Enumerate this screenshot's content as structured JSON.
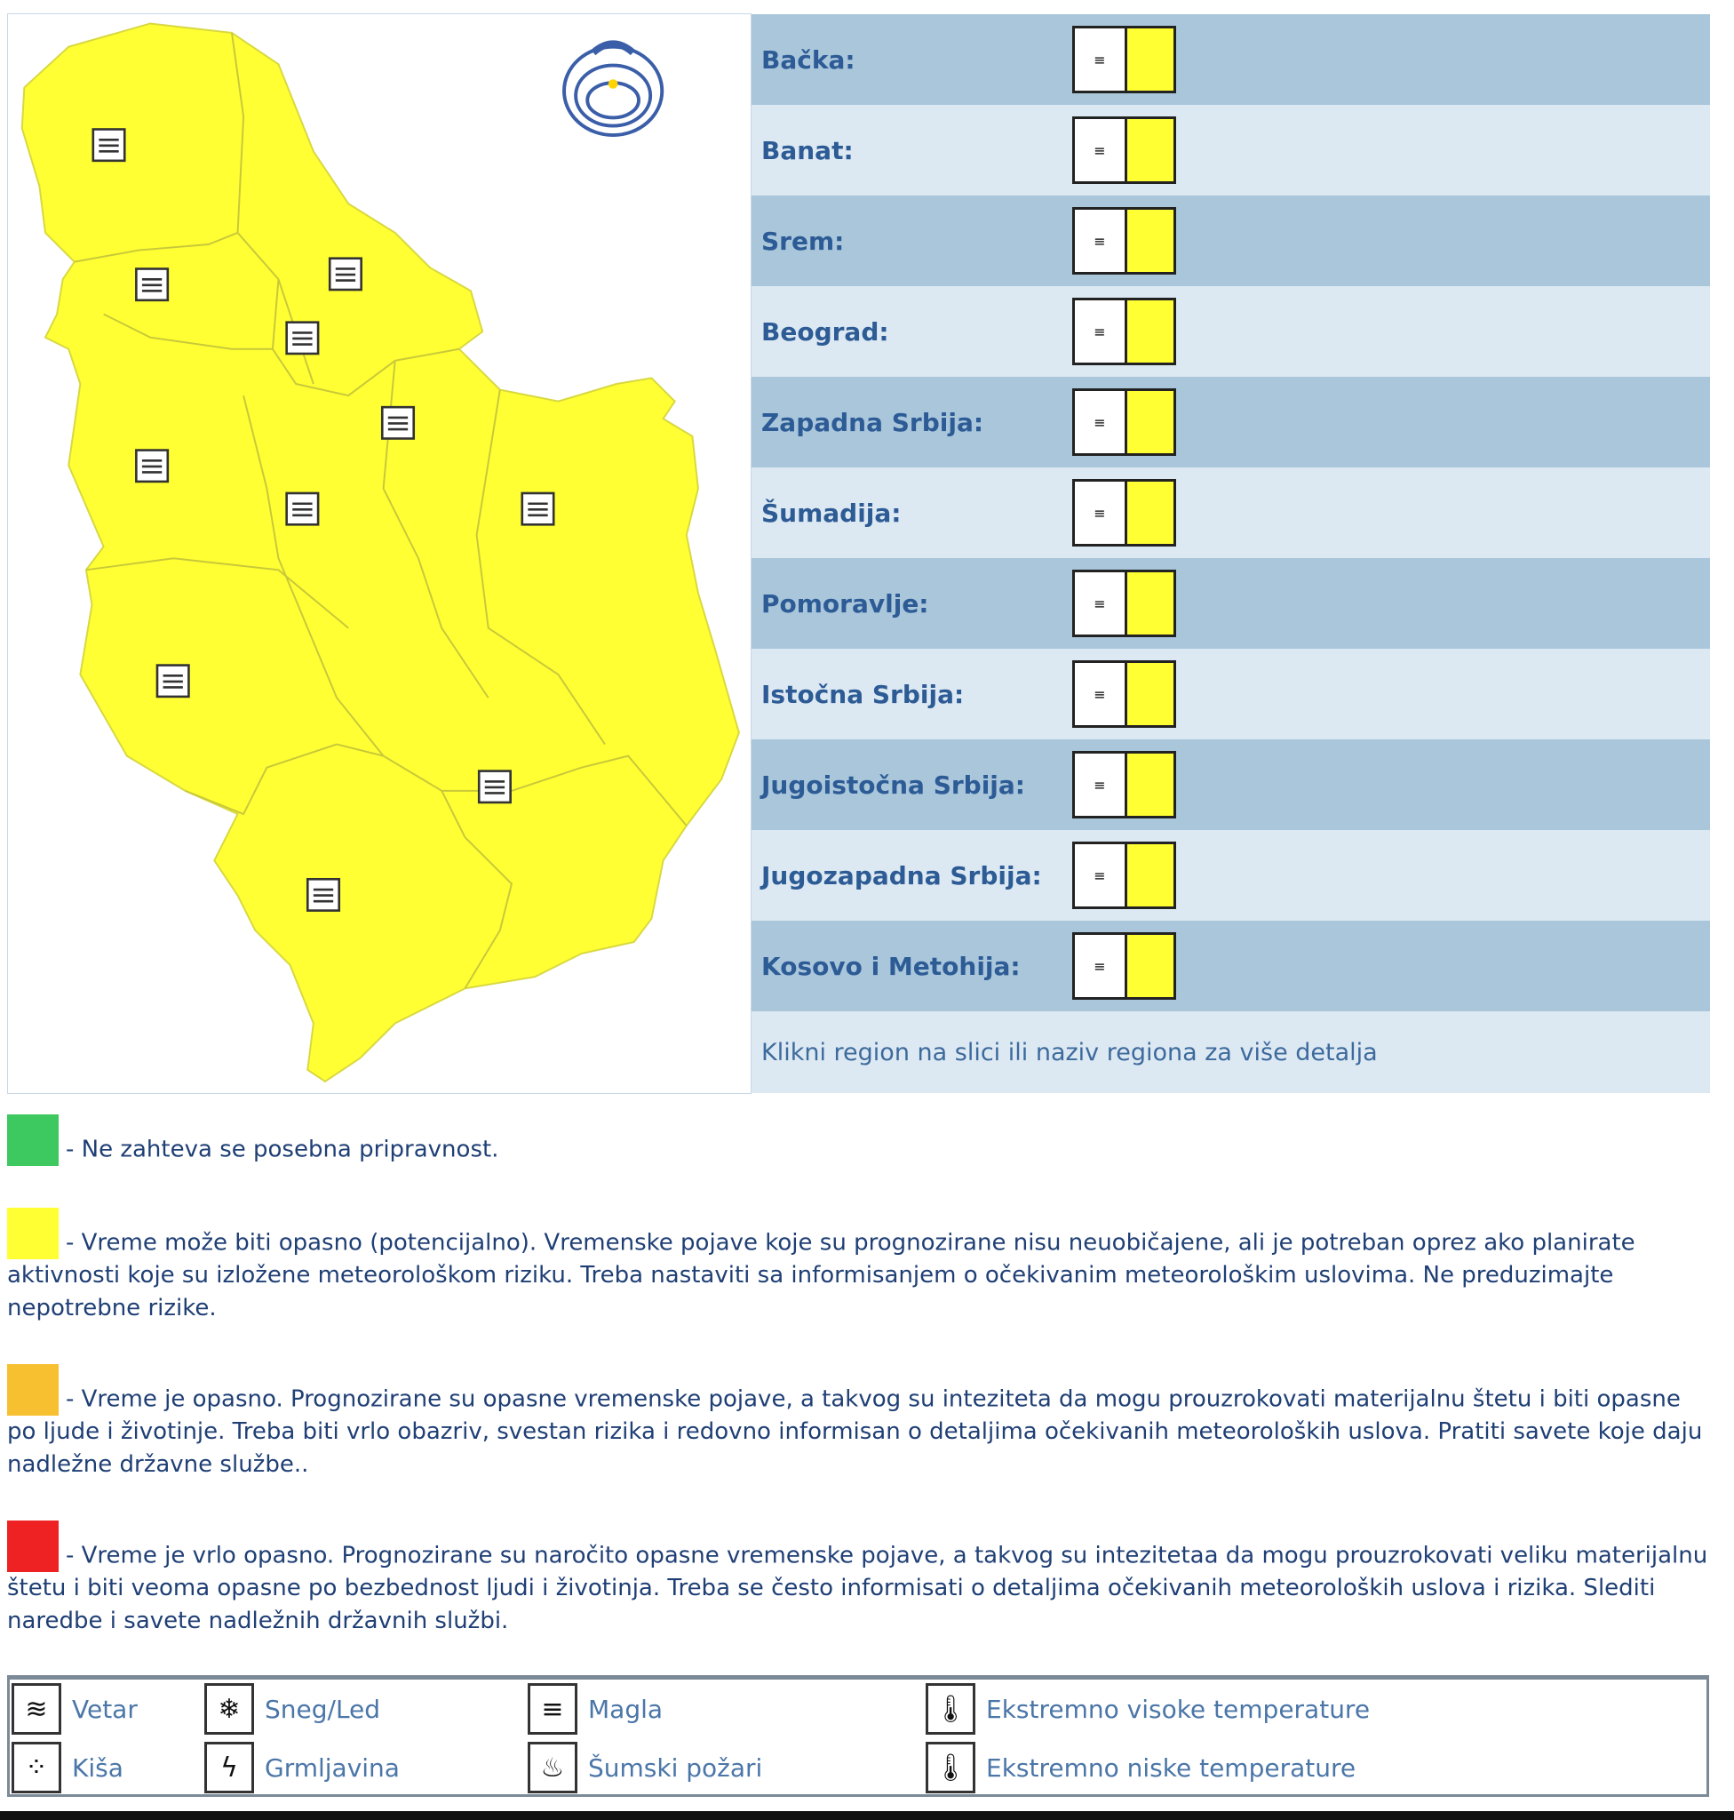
{
  "map": {
    "fill_color": "#ffff33",
    "warning_icon": "fog-icon",
    "logo": "rhmz-srbije-logo"
  },
  "regions": [
    {
      "label": "Bačka:",
      "warning": "Magla",
      "level_color": "#ffff33"
    },
    {
      "label": "Banat:",
      "warning": "Magla",
      "level_color": "#ffff33"
    },
    {
      "label": "Srem:",
      "warning": "Magla",
      "level_color": "#ffff33"
    },
    {
      "label": "Beograd:",
      "warning": "Magla",
      "level_color": "#ffff33"
    },
    {
      "label": "Zapadna Srbija:",
      "warning": "Magla",
      "level_color": "#ffff33"
    },
    {
      "label": "Šumadija:",
      "warning": "Magla",
      "level_color": "#ffff33"
    },
    {
      "label": "Pomoravlje:",
      "warning": "Magla",
      "level_color": "#ffff33"
    },
    {
      "label": "Istočna Srbija:",
      "warning": "Magla",
      "level_color": "#ffff33"
    },
    {
      "label": "Jugoistočna Srbija:",
      "warning": "Magla",
      "level_color": "#ffff33"
    },
    {
      "label": "Jugozapadna Srbija:",
      "warning": "Magla",
      "level_color": "#ffff33"
    },
    {
      "label": "Kosovo i Metohija:",
      "warning": "Magla",
      "level_color": "#ffff33"
    }
  ],
  "hint": "Klikni region na slici ili naziv regiona za više detalja",
  "levels": [
    {
      "color": "#3ec860",
      "text": "- Ne zahteva se posebna pripravnost."
    },
    {
      "color": "#ffff33",
      "text": "- Vreme može biti opasno (potencijalno). Vremenske pojave koje su prognozirane nisu neuobičajene, ali je potreban oprez ako planirate aktivnosti koje su izložene meteorološkom riziku. Treba nastaviti sa informisanjem o očekivanim meteorološkim uslovima. Ne preduzimajte nepotrebne rizike."
    },
    {
      "color": "#f7c030",
      "text": "- Vreme je opasno. Prognozirane su opasne vremenske pojave, a takvog su inteziteta da mogu prouzrokovati materijalnu štetu i biti opasne po ljude i životinje. Treba biti vrlo obazriv, svestan rizika i redovno informisan o detaljima očekivanih meteoroloških uslova. Pratiti savete koje daju nadležne državne službe.."
    },
    {
      "color": "#ee2222",
      "text": "- Vreme je vrlo opasno. Prognozirane su naročito opasne vremenske pojave, a takvog su intezitetaa da mogu prouzrokovati veliku materijalnu štetu i biti veoma opasne po bezbednost ljudi i životinja. Treba se često informisati o detaljima očekivanih meteoroloških uslova i rizika. Slediti naredbe i savete nadležnih državnih službi."
    }
  ],
  "phenomena": [
    {
      "label": "Vetar",
      "icon": "wind-icon",
      "glyph": "≋"
    },
    {
      "label": "Kiša",
      "icon": "rain-icon",
      "glyph": "⁘"
    },
    {
      "label": "Sneg/Led",
      "icon": "snow-icon",
      "glyph": "❄"
    },
    {
      "label": "Grmljavina",
      "icon": "lightning-icon",
      "glyph": "ϟ"
    },
    {
      "label": "Magla",
      "icon": "fog-icon",
      "glyph": "≡"
    },
    {
      "label": "Šumski požari",
      "icon": "forest-fire-icon",
      "glyph": "♨"
    },
    {
      "label": "Ekstremno visoke temperature",
      "icon": "thermometer-high-icon",
      "glyph": "🌡"
    },
    {
      "label": "Ekstremno niske temperature",
      "icon": "thermometer-low-icon",
      "glyph": "🌡"
    }
  ]
}
